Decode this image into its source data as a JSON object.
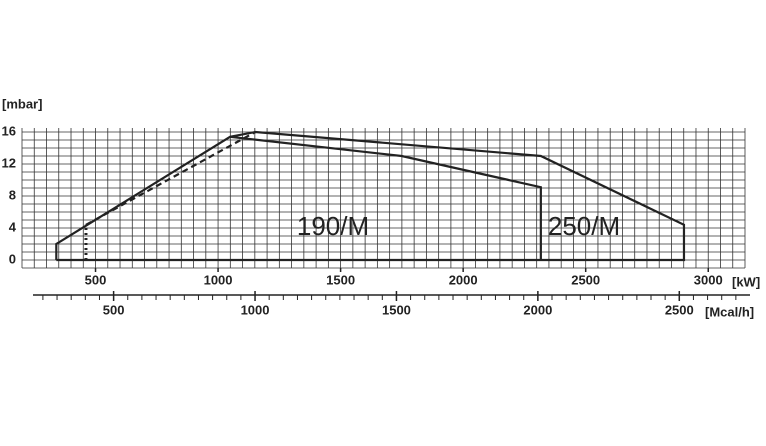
{
  "chart_data": {
    "type": "line",
    "y_label": "[mbar]",
    "x_label": "[kW]",
    "x2_label": "[Mcal/h]",
    "xlim": [
      200,
      3150
    ],
    "xticks": [
      500,
      1000,
      1500,
      2000,
      2500,
      3000
    ],
    "xminorticks": [
      200,
      250,
      300,
      350,
      400,
      450,
      500,
      550,
      600,
      650,
      700,
      750,
      800,
      850,
      900,
      950,
      1000,
      1050,
      1100,
      1150,
      1200,
      1250,
      1300,
      1350,
      1400,
      1450,
      1500,
      1550,
      1600,
      1650,
      1700,
      1750,
      1800,
      1850,
      1900,
      1950,
      2000,
      2050,
      2100,
      2150,
      2200,
      2250,
      2300,
      2350,
      2400,
      2450,
      2500,
      2550,
      2600,
      2650,
      2700,
      2750,
      2800,
      2850,
      2900,
      2950,
      3000,
      3050,
      3100,
      3150
    ],
    "ylim": [
      -1,
      16.5
    ],
    "yticks": [
      0,
      4,
      8,
      12,
      16
    ],
    "yminorticks": [
      -1,
      0,
      1,
      2,
      3,
      4,
      5,
      6,
      7,
      8,
      9,
      10,
      11,
      12,
      13,
      14,
      15,
      16
    ],
    "x2lim": [
      215,
      2750
    ],
    "x2ticks": [
      500,
      1000,
      1500,
      2000,
      2500
    ],
    "x2minorticks": [
      250,
      300,
      350,
      400,
      450,
      500,
      550,
      600,
      650,
      700,
      750,
      800,
      850,
      900,
      950,
      1000,
      1050,
      1100,
      1150,
      1200,
      1250,
      1300,
      1350,
      1400,
      1450,
      1500,
      1550,
      1600,
      1650,
      1700,
      1750,
      1800,
      1850,
      1900,
      1950,
      2000,
      2050,
      2100,
      2150,
      2200,
      2250,
      2300,
      2350,
      2400,
      2450,
      2500,
      2550,
      2600,
      2650,
      2700
    ],
    "grid": true,
    "series": [
      {
        "name": "250/M",
        "color": "#222",
        "style": "solid",
        "x": [
          340,
          340,
          1049,
          1152,
          2317,
          2901,
          2901,
          340
        ],
        "values": [
          0,
          2,
          15.4,
          16,
          13,
          4.4,
          0,
          0
        ]
      },
      {
        "name": "190/M",
        "color": "#222",
        "style": "solid",
        "x": [
          1049,
          1749,
          2317,
          2317
        ],
        "values": [
          15.4,
          13,
          9.1,
          0
        ]
      },
      {
        "name": null,
        "color": "#222",
        "style": "dashed",
        "x": [
          461,
          1152
        ],
        "values": [
          4.4,
          16
        ]
      },
      {
        "name": null,
        "color": "#222",
        "style": "dotted",
        "x": [
          461,
          461
        ],
        "values": [
          0,
          4.4
        ]
      }
    ]
  }
}
